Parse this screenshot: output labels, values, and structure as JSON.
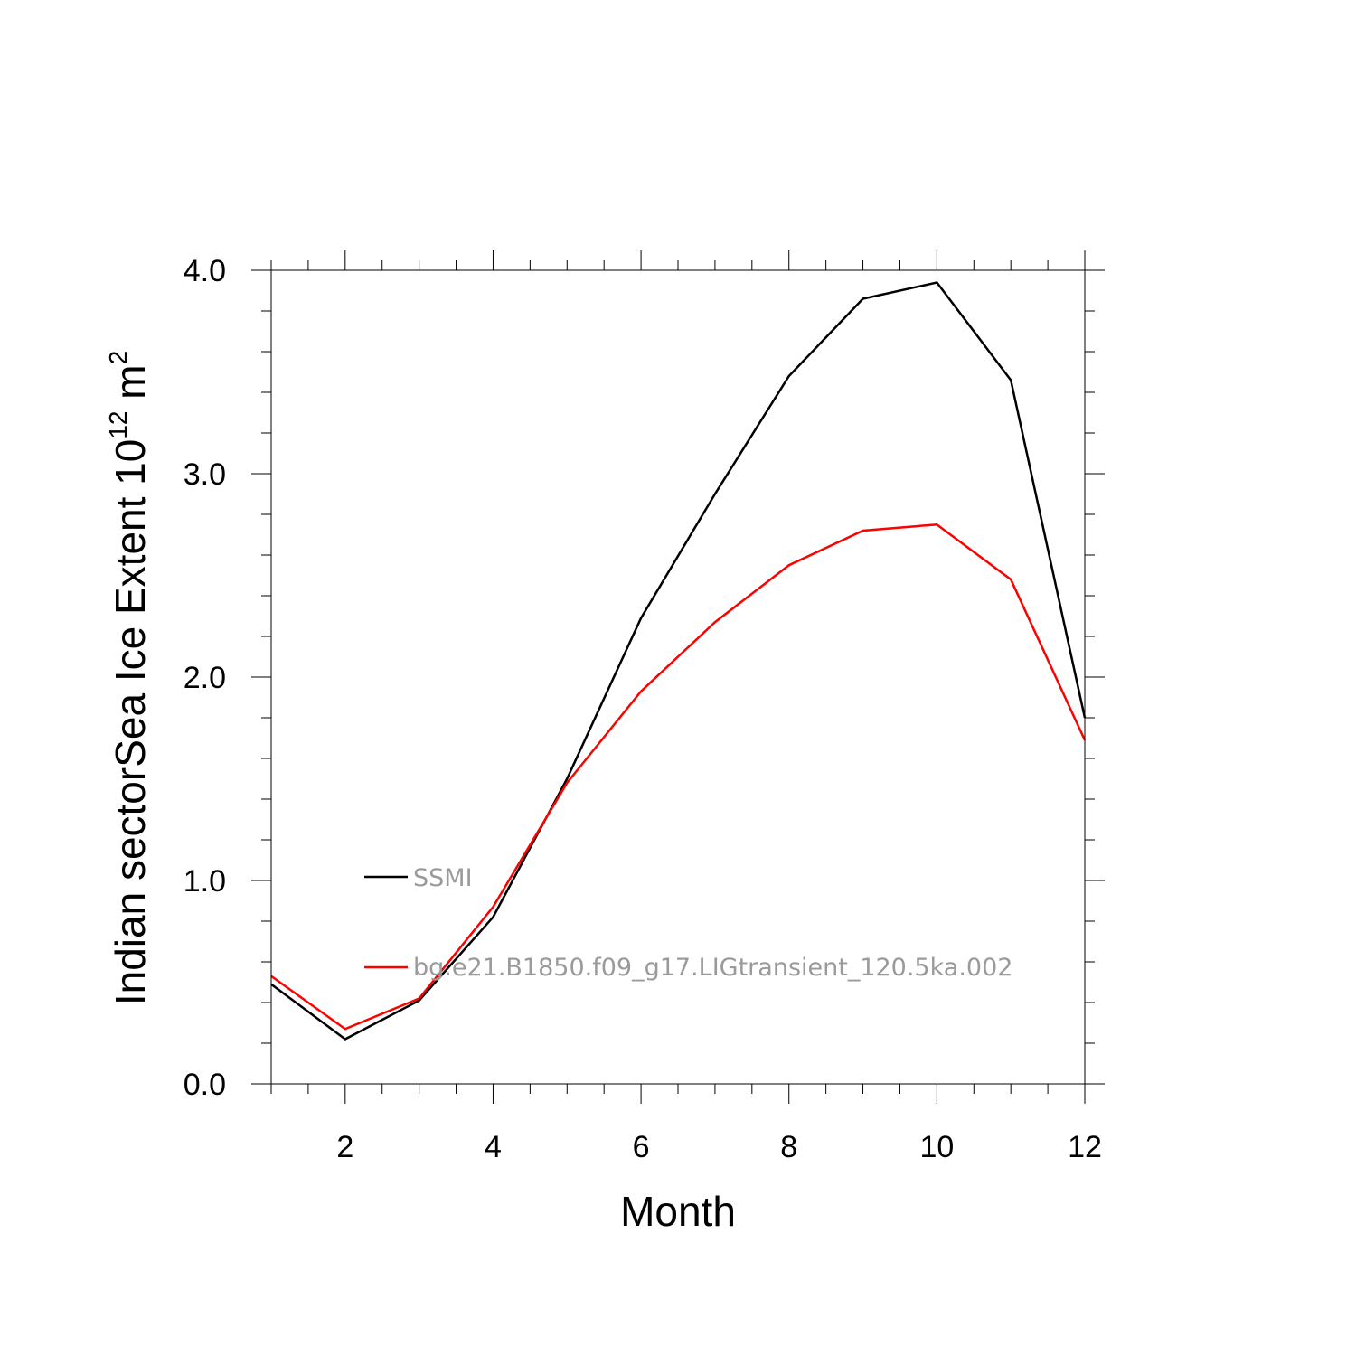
{
  "chart_data": {
    "type": "line",
    "xlabel": "Month",
    "ylabel": {
      "main": "Indian sectorSea Ice Extent 10",
      "superscript": "12",
      "unit": " m",
      "unit_superscript": "2"
    },
    "xlim": [
      1,
      12
    ],
    "ylim": [
      0,
      4
    ],
    "x": [
      1,
      2,
      3,
      4,
      5,
      6,
      7,
      8,
      9,
      10,
      11,
      12
    ],
    "x_ticks": [
      "2",
      "4",
      "6",
      "8",
      "10",
      "12"
    ],
    "x_tick_values": [
      2,
      4,
      6,
      8,
      10,
      12
    ],
    "y_ticks": [
      "0.0",
      "1.0",
      "2.0",
      "3.0",
      "4.0"
    ],
    "y_tick_values": [
      0,
      1,
      2,
      3,
      4
    ],
    "grid": false,
    "legend_position": "inside-left",
    "series": [
      {
        "name": "SSMI",
        "color": "#000000",
        "values": [
          0.49,
          0.22,
          0.41,
          0.82,
          1.5,
          2.29,
          2.9,
          3.48,
          3.86,
          3.94,
          3.46,
          1.8
        ]
      },
      {
        "name": "bg.e21.B1850.f09_g17.LIGtransient_120.5ka.002",
        "color": "#ff0000",
        "values": [
          0.53,
          0.27,
          0.42,
          0.87,
          1.48,
          1.93,
          2.27,
          2.55,
          2.72,
          2.75,
          2.48,
          1.69
        ]
      }
    ]
  }
}
